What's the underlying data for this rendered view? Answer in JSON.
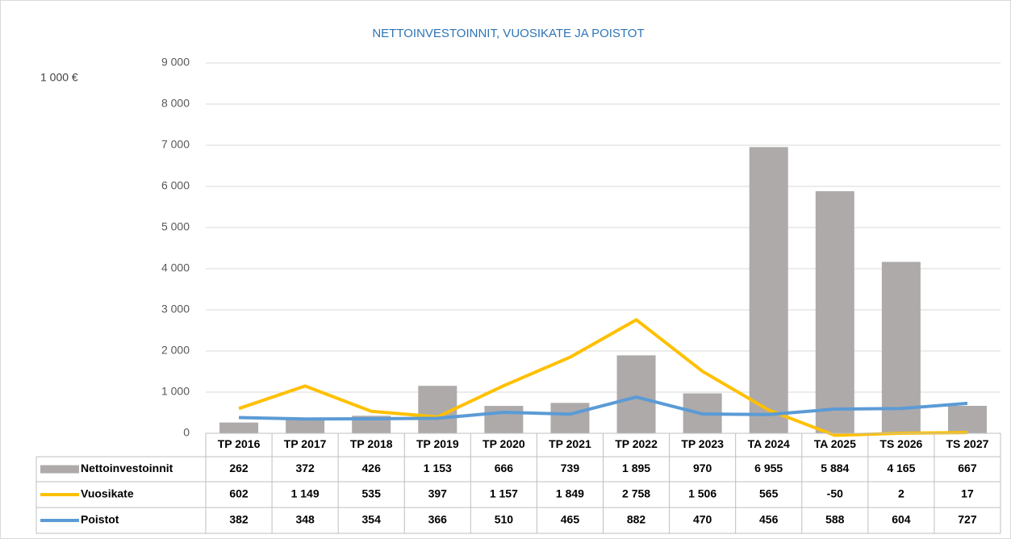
{
  "chart_data": {
    "type": "bar-line",
    "title": "NETTOINVESTOINNIT, VUOSIKATE JA POISTOT",
    "y_label": "1 000 €",
    "categories": [
      "TP 2016",
      "TP 2017",
      "TP 2018",
      "TP 2019",
      "TP 2020",
      "TP 2021",
      "TP 2022",
      "TP 2023",
      "TA 2024",
      "TA 2025",
      "TS 2026",
      "TS 2027"
    ],
    "series": [
      {
        "name": "Nettoinvestoinnit",
        "type": "bar",
        "color": "#aeaaaa",
        "values": [
          262,
          372,
          426,
          1153,
          666,
          739,
          1895,
          970,
          6955,
          5884,
          4165,
          667
        ],
        "value_labels": [
          "262",
          "372",
          "426",
          "1 153",
          "666",
          "739",
          "1 895",
          "970",
          "6 955",
          "5 884",
          "4 165",
          "667"
        ]
      },
      {
        "name": "Vuosikate",
        "type": "line",
        "color": "#ffc000",
        "values": [
          602,
          1149,
          535,
          397,
          1157,
          1849,
          2758,
          1506,
          565,
          -50,
          2,
          17
        ],
        "value_labels": [
          "602",
          "1 149",
          "535",
          "397",
          "1 157",
          "1 849",
          "2 758",
          "1 506",
          "565",
          "-50",
          "2",
          "17"
        ]
      },
      {
        "name": "Poistot",
        "type": "line",
        "color": "#5b9bd5",
        "values": [
          382,
          348,
          354,
          366,
          510,
          465,
          882,
          470,
          456,
          588,
          604,
          727
        ],
        "value_labels": [
          "382",
          "348",
          "354",
          "366",
          "510",
          "465",
          "882",
          "470",
          "456",
          "588",
          "604",
          "727"
        ]
      }
    ],
    "ylim": [
      0,
      9000
    ],
    "yticks": [
      0,
      {
        "value": 1000,
        "label": "1 000"
      },
      {
        "value": 2000,
        "label": "2 000"
      },
      {
        "value": 3000,
        "label": "3 000"
      },
      {
        "value": 4000,
        "label": "4 000"
      },
      {
        "value": 5000,
        "label": "5 000"
      },
      {
        "value": 6000,
        "label": "6 000"
      },
      {
        "value": 7000,
        "label": "7 000"
      },
      {
        "value": 8000,
        "label": "8 000"
      },
      {
        "value": 9000,
        "label": "9 000"
      }
    ],
    "grid": true
  }
}
